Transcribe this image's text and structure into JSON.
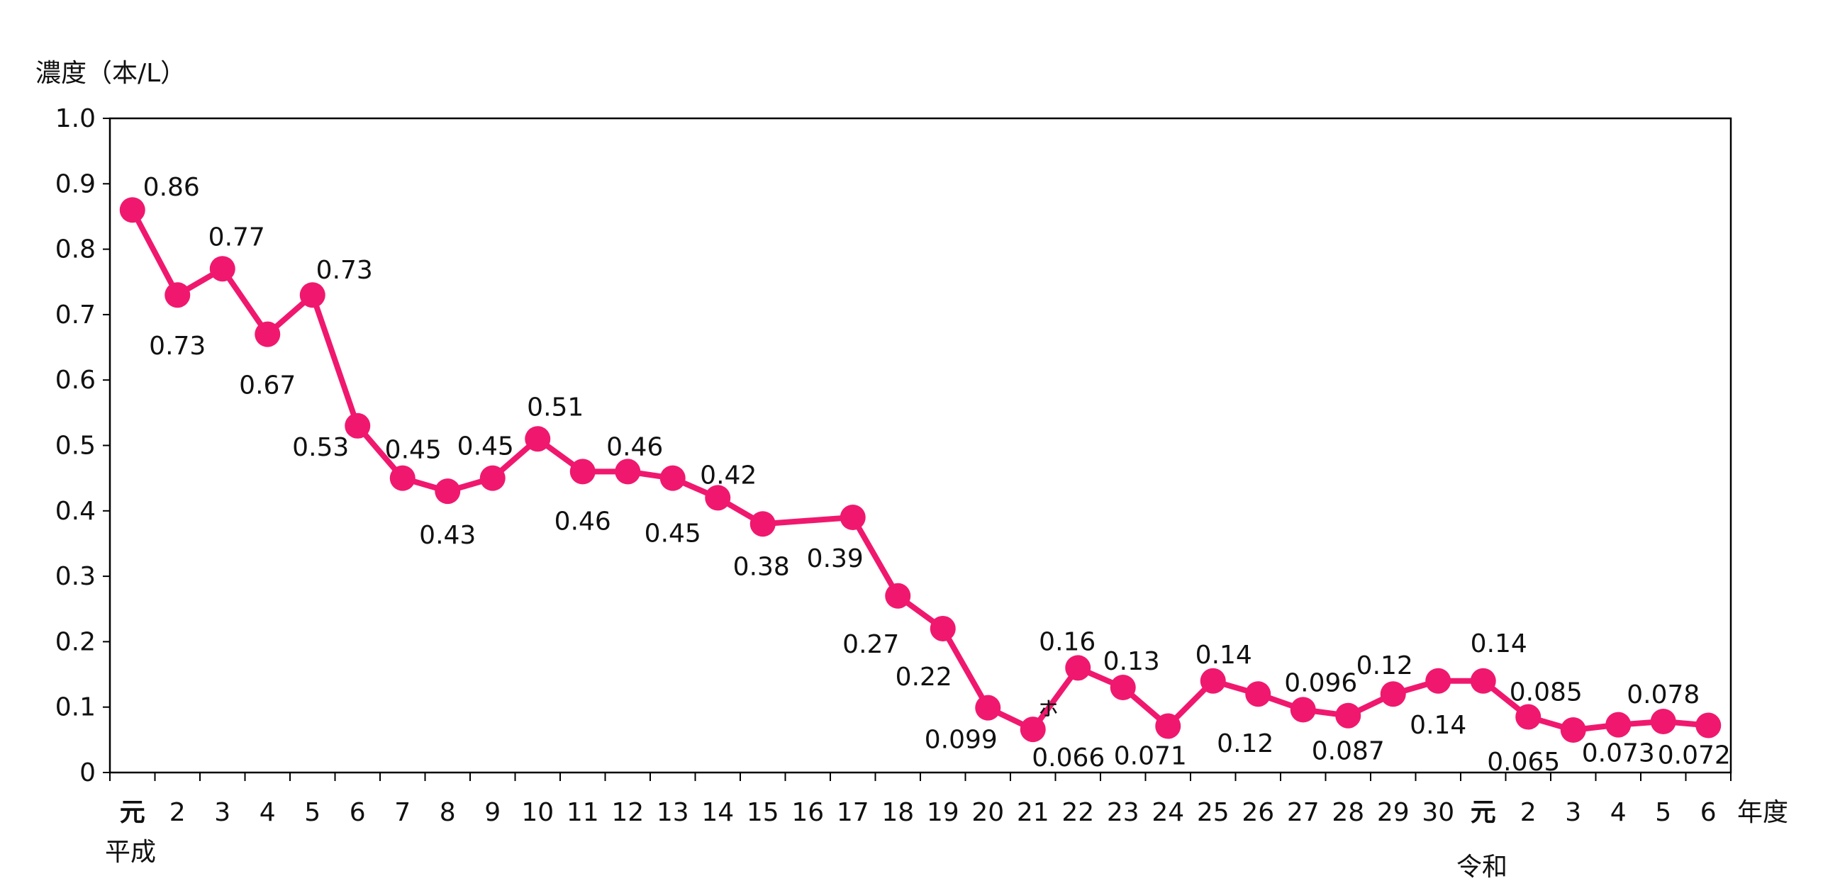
{
  "chart_data": {
    "type": "line",
    "ylabel": "濃度（本/L）",
    "xlabel": "年度",
    "era_labels": [
      "平成",
      "令和"
    ],
    "ylim": [
      0,
      1.0
    ],
    "yticks": [
      "0",
      "0.1",
      "0.2",
      "0.3",
      "0.4",
      "0.5",
      "0.6",
      "0.7",
      "0.8",
      "0.9",
      "1.0"
    ],
    "x": [
      "元",
      "2",
      "3",
      "4",
      "5",
      "6",
      "7",
      "8",
      "9",
      "10",
      "11",
      "12",
      "13",
      "14",
      "15",
      "16",
      "17",
      "18",
      "19",
      "20",
      "21",
      "22",
      "23",
      "24",
      "25",
      "26",
      "27",
      "28",
      "29",
      "30",
      "元",
      "2",
      "3",
      "4",
      "5",
      "6"
    ],
    "values": [
      0.86,
      0.73,
      0.77,
      0.67,
      0.73,
      0.53,
      0.45,
      0.43,
      0.45,
      0.51,
      0.46,
      0.46,
      0.45,
      0.42,
      0.38,
      null,
      0.39,
      0.27,
      0.22,
      0.099,
      0.066,
      0.16,
      0.13,
      0.071,
      0.14,
      0.12,
      0.096,
      0.087,
      0.12,
      0.14,
      0.14,
      0.085,
      0.065,
      0.073,
      0.078,
      0.072
    ],
    "data_labels": [
      "0.86",
      "0.73",
      "0.77",
      "0.67",
      "0.73",
      "0.53",
      "0.45",
      "0.43",
      "0.45",
      "0.51",
      "0.46",
      "0.46",
      "0.45",
      "0.42",
      "0.38",
      "",
      "0.39",
      "0.27",
      "0.22",
      "0.099",
      "0.066",
      "0.16",
      "0.13",
      "0.071",
      "0.14",
      "0.12",
      "0.096",
      "0.087",
      "0.12",
      "0.14",
      "0.14",
      "0.085",
      "0.065",
      "0.073",
      "0.078",
      "0.072"
    ],
    "annotation": "ㇹ",
    "series_color": "#f0186e",
    "axis_color": "#000000",
    "grid": false
  }
}
